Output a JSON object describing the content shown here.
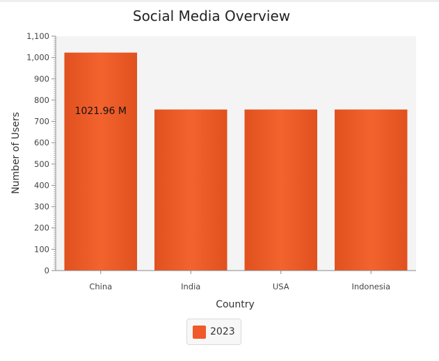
{
  "chart_data": {
    "type": "bar",
    "title": "Social Media Overview",
    "xlabel": "Country",
    "ylabel": "Number of Users",
    "categories": [
      "China",
      "India",
      "USA",
      "Indonesia"
    ],
    "series": [
      {
        "name": "2023",
        "values": [
          1021.96,
          755,
          755,
          755
        ]
      }
    ],
    "data_labels": [
      {
        "category": "China",
        "text": "1021.96 M"
      }
    ],
    "ylim": [
      0,
      1100
    ],
    "yticks": [
      0,
      100,
      200,
      300,
      400,
      500,
      600,
      700,
      800,
      900,
      1000,
      1100
    ],
    "ytick_labels": [
      "0",
      "100",
      "200",
      "300",
      "400",
      "500",
      "600",
      "700",
      "800",
      "900",
      "1,000",
      "1,100"
    ],
    "minor_ticks_per_major": 10,
    "grid": false,
    "legend_position": "bottom-center",
    "colors": {
      "bar": "#f05a28",
      "bar_edge": "#e0531f",
      "plot_background": "#f4f4f4",
      "axis": "#888888"
    }
  }
}
